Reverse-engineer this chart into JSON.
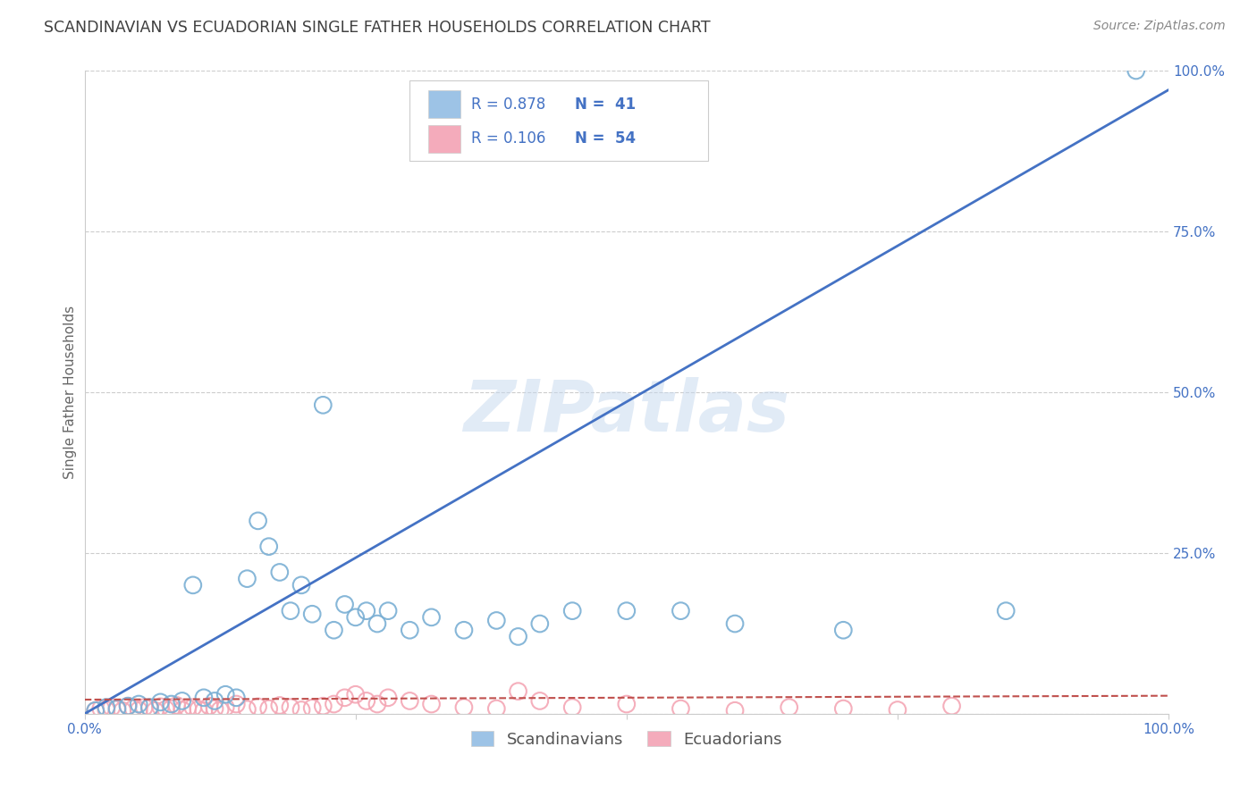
{
  "title": "SCANDINAVIAN VS ECUADORIAN SINGLE FATHER HOUSEHOLDS CORRELATION CHART",
  "source": "Source: ZipAtlas.com",
  "ylabel": "Single Father Households",
  "watermark": "ZIPatlas",
  "legend_blue_r": "R = 0.878",
  "legend_blue_n": "N =  41",
  "legend_pink_r": "R = 0.106",
  "legend_pink_n": "N =  54",
  "legend_label_blue": "Scandinavians",
  "legend_label_pink": "Ecuadorians",
  "blue_scatter_x": [
    1,
    2,
    3,
    4,
    5,
    6,
    7,
    8,
    9,
    10,
    11,
    12,
    13,
    14,
    15,
    16,
    17,
    18,
    19,
    20,
    21,
    22,
    23,
    24,
    25,
    26,
    27,
    28,
    30,
    32,
    35,
    38,
    40,
    42,
    45,
    50,
    55,
    60,
    70,
    85,
    97
  ],
  "blue_scatter_y": [
    0.5,
    1.0,
    0.8,
    1.2,
    1.5,
    1.0,
    1.8,
    1.5,
    2.0,
    20.0,
    2.5,
    2.0,
    3.0,
    2.5,
    21.0,
    30.0,
    26.0,
    22.0,
    16.0,
    20.0,
    15.5,
    48.0,
    13.0,
    17.0,
    15.0,
    16.0,
    14.0,
    16.0,
    13.0,
    15.0,
    13.0,
    14.5,
    12.0,
    14.0,
    16.0,
    16.0,
    16.0,
    14.0,
    13.0,
    16.0,
    100.0
  ],
  "pink_scatter_x": [
    1,
    1.5,
    2,
    2.5,
    3,
    3.5,
    4,
    4.5,
    5,
    5.5,
    6,
    6.5,
    7,
    7.5,
    8,
    8.5,
    9,
    9.5,
    10,
    10.5,
    11,
    11.5,
    12,
    12.5,
    13,
    14,
    15,
    16,
    17,
    18,
    19,
    20,
    21,
    22,
    23,
    24,
    25,
    26,
    27,
    28,
    30,
    32,
    35,
    38,
    40,
    42,
    45,
    50,
    55,
    60,
    65,
    70,
    75,
    80
  ],
  "pink_scatter_y": [
    0.5,
    0.8,
    0.6,
    1.0,
    0.7,
    0.5,
    1.2,
    0.8,
    0.6,
    1.0,
    0.9,
    0.5,
    1.1,
    0.7,
    0.8,
    1.3,
    0.6,
    0.9,
    1.0,
    0.7,
    0.5,
    1.2,
    0.8,
    0.6,
    1.0,
    1.5,
    0.7,
    1.1,
    0.8,
    1.3,
    1.0,
    0.6,
    0.9,
    1.2,
    1.5,
    2.5,
    3.0,
    2.0,
    1.5,
    2.5,
    2.0,
    1.5,
    1.0,
    0.8,
    3.5,
    2.0,
    1.0,
    1.5,
    0.8,
    0.5,
    1.0,
    0.8,
    0.6,
    1.2
  ],
  "blue_line_x0": 0,
  "blue_line_y0": 0,
  "blue_line_x1": 100,
  "blue_line_y1": 97,
  "pink_line_x0": 0,
  "pink_line_y0": 2.2,
  "pink_line_x1": 100,
  "pink_line_y1": 2.8,
  "blue_dot_color": "#7AAFD4",
  "pink_dot_color": "#F4A7B5",
  "blue_line_color": "#4472C4",
  "pink_line_color": "#C0504D",
  "legend_blue_fill": "#9DC3E6",
  "legend_pink_fill": "#F4ABBB",
  "background_color": "#FFFFFF",
  "grid_color": "#CCCCCC",
  "title_color": "#404040",
  "axis_tick_color": "#4472C4",
  "ylabel_color": "#666666",
  "source_color": "#888888",
  "legend_r_color": "#333333",
  "legend_n_color": "#4472C4",
  "legend_border_color": "#CCCCCC",
  "watermark_color": "#C5D8EE",
  "xlim": [
    0,
    100
  ],
  "ylim": [
    0,
    100
  ],
  "yticks": [
    0,
    25,
    50,
    75,
    100
  ],
  "xticks": [
    0,
    25,
    50,
    75,
    100
  ],
  "ytick_labels": [
    "",
    "25.0%",
    "50.0%",
    "75.0%",
    "100.0%"
  ],
  "xtick_labels": [
    "0.0%",
    "",
    "",
    "",
    "100.0%"
  ]
}
